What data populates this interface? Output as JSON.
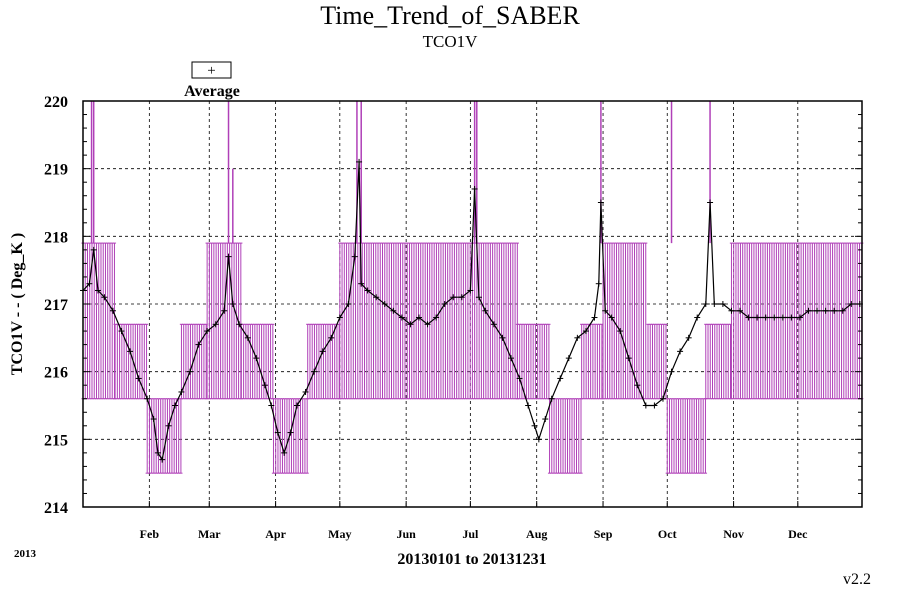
{
  "chart_data": {
    "type": "line",
    "title": "Time_Trend_of_SABER",
    "subtitle": "TCO1V",
    "ylabel": "TCO1V - - ( Deg_K )",
    "xlabel": "20130101 to 20131231",
    "year_label": "2013",
    "version": "v2.2",
    "legend": {
      "label": "Average",
      "symbol": "+",
      "placement": "top-left"
    },
    "ylim": [
      214,
      220
    ],
    "yticks": [
      "214",
      "215",
      "216",
      "217",
      "218",
      "219",
      "220"
    ],
    "xlim": [
      "2013-01-01",
      "2013-12-31"
    ],
    "x_ticks": [
      "Feb",
      "Mar",
      "Apr",
      "May",
      "Jun",
      "Jul",
      "Aug",
      "Sep",
      "Oct",
      "Nov",
      "Dec"
    ],
    "grid": true,
    "colors": {
      "average": "#000000",
      "range": "#b040b8"
    },
    "series": [
      {
        "name": "Average",
        "points": [
          [
            1,
            217.2
          ],
          [
            4,
            217.3
          ],
          [
            6,
            217.8
          ],
          [
            8,
            217.2
          ],
          [
            11,
            217.1
          ],
          [
            15,
            216.9
          ],
          [
            19,
            216.6
          ],
          [
            23,
            216.3
          ],
          [
            27,
            215.9
          ],
          [
            31,
            215.6
          ],
          [
            34,
            215.3
          ],
          [
            36,
            214.8
          ],
          [
            38,
            214.7
          ],
          [
            41,
            215.2
          ],
          [
            44,
            215.5
          ],
          [
            47,
            215.7
          ],
          [
            51,
            216.0
          ],
          [
            55,
            216.4
          ],
          [
            59,
            216.6
          ],
          [
            63,
            216.7
          ],
          [
            67,
            216.9
          ],
          [
            69,
            217.7
          ],
          [
            71,
            217.0
          ],
          [
            74,
            216.7
          ],
          [
            78,
            216.5
          ],
          [
            82,
            216.2
          ],
          [
            86,
            215.8
          ],
          [
            89,
            215.5
          ],
          [
            92,
            215.1
          ],
          [
            95,
            214.8
          ],
          [
            98,
            215.1
          ],
          [
            101,
            215.5
          ],
          [
            105,
            215.7
          ],
          [
            109,
            216.0
          ],
          [
            113,
            216.3
          ],
          [
            117,
            216.5
          ],
          [
            121,
            216.8
          ],
          [
            125,
            217.0
          ],
          [
            128,
            217.7
          ],
          [
            130,
            219.1
          ],
          [
            131,
            217.3
          ],
          [
            134,
            217.2
          ],
          [
            138,
            217.1
          ],
          [
            142,
            217.0
          ],
          [
            146,
            216.9
          ],
          [
            150,
            216.8
          ],
          [
            154,
            216.7
          ],
          [
            158,
            216.8
          ],
          [
            162,
            216.7
          ],
          [
            166,
            216.8
          ],
          [
            170,
            217.0
          ],
          [
            174,
            217.1
          ],
          [
            178,
            217.1
          ],
          [
            182,
            217.2
          ],
          [
            184,
            218.7
          ],
          [
            186,
            217.1
          ],
          [
            189,
            216.9
          ],
          [
            193,
            216.7
          ],
          [
            197,
            216.5
          ],
          [
            201,
            216.2
          ],
          [
            205,
            215.9
          ],
          [
            209,
            215.5
          ],
          [
            212,
            215.2
          ],
          [
            214,
            215.0
          ],
          [
            217,
            215.3
          ],
          [
            220,
            215.6
          ],
          [
            224,
            215.9
          ],
          [
            228,
            216.2
          ],
          [
            232,
            216.5
          ],
          [
            236,
            216.6
          ],
          [
            240,
            216.8
          ],
          [
            242,
            217.3
          ],
          [
            243,
            218.5
          ],
          [
            245,
            216.9
          ],
          [
            248,
            216.8
          ],
          [
            252,
            216.6
          ],
          [
            256,
            216.2
          ],
          [
            260,
            215.8
          ],
          [
            264,
            215.5
          ],
          [
            268,
            215.5
          ],
          [
            272,
            215.6
          ],
          [
            276,
            216.0
          ],
          [
            280,
            216.3
          ],
          [
            284,
            216.5
          ],
          [
            288,
            216.8
          ],
          [
            292,
            217.0
          ],
          [
            294,
            218.5
          ],
          [
            296,
            217.0
          ],
          [
            300,
            217.0
          ],
          [
            304,
            216.9
          ],
          [
            308,
            216.9
          ],
          [
            312,
            216.8
          ],
          [
            316,
            216.8
          ],
          [
            320,
            216.8
          ],
          [
            324,
            216.8
          ],
          [
            328,
            216.8
          ],
          [
            332,
            216.8
          ],
          [
            336,
            216.8
          ],
          [
            340,
            216.9
          ],
          [
            344,
            216.9
          ],
          [
            348,
            216.9
          ],
          [
            352,
            216.9
          ],
          [
            356,
            216.9
          ],
          [
            360,
            217.0
          ],
          [
            364,
            217.0
          ]
        ]
      },
      {
        "name": "Range",
        "segments": [
          {
            "from": 1,
            "to": 16,
            "min": 215.6,
            "max": 217.9
          },
          {
            "from": 16,
            "to": 31,
            "min": 215.6,
            "max": 216.7
          },
          {
            "from": 31,
            "to": 47,
            "min": 214.5,
            "max": 215.6
          },
          {
            "from": 47,
            "to": 59,
            "min": 215.6,
            "max": 216.7
          },
          {
            "from": 59,
            "to": 75,
            "min": 215.6,
            "max": 217.9
          },
          {
            "from": 75,
            "to": 90,
            "min": 215.6,
            "max": 216.7
          },
          {
            "from": 90,
            "to": 106,
            "min": 214.5,
            "max": 215.6
          },
          {
            "from": 106,
            "to": 121,
            "min": 215.6,
            "max": 216.7
          },
          {
            "from": 121,
            "to": 204,
            "min": 215.6,
            "max": 217.9
          },
          {
            "from": 204,
            "to": 219,
            "min": 215.6,
            "max": 216.7
          },
          {
            "from": 219,
            "to": 234,
            "min": 214.5,
            "max": 215.6
          },
          {
            "from": 234,
            "to": 244,
            "min": 215.6,
            "max": 216.7
          },
          {
            "from": 244,
            "to": 265,
            "min": 215.6,
            "max": 217.9
          },
          {
            "from": 265,
            "to": 274,
            "min": 215.6,
            "max": 216.7
          },
          {
            "from": 274,
            "to": 292,
            "min": 214.5,
            "max": 215.6
          },
          {
            "from": 292,
            "to": 304,
            "min": 215.6,
            "max": 216.7
          },
          {
            "from": 304,
            "to": 365,
            "min": 215.6,
            "max": 217.9
          }
        ],
        "spikes": [
          {
            "x": 5,
            "max": 220.0
          },
          {
            "x": 6,
            "max": 220.0
          },
          {
            "x": 69,
            "max": 220.0
          },
          {
            "x": 71,
            "max": 219.0
          },
          {
            "x": 129,
            "max": 220.0
          },
          {
            "x": 131,
            "max": 220.0
          },
          {
            "x": 184,
            "max": 220.0
          },
          {
            "x": 185,
            "max": 220.0
          },
          {
            "x": 243,
            "max": 220.0
          },
          {
            "x": 276,
            "max": 220.0
          },
          {
            "x": 294,
            "max": 220.0
          }
        ]
      }
    ]
  }
}
